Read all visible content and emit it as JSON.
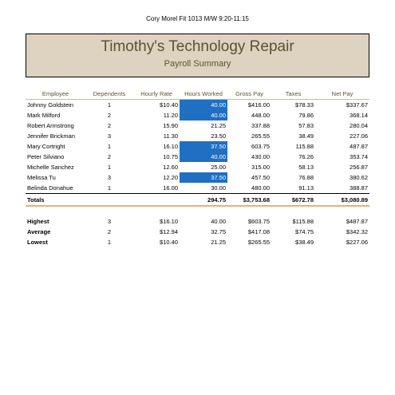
{
  "page_header": "Cory Morel Fit 1013 M/W 9:20-11:15",
  "title": "Timothy's Technology Repair",
  "subtitle": "Payroll Summary",
  "columns": [
    "Employee",
    "Dependents",
    "Hourly Rate",
    "Hours Worked",
    "Gross Pay",
    "Taxes",
    "Net Pay"
  ],
  "employees": [
    {
      "name": "Johnny Goldstein",
      "dependents": "1",
      "rate": "$10.40",
      "hours": "40.00",
      "gross": "$416.00",
      "taxes": "$78.33",
      "net": "$337.67",
      "highlight": true
    },
    {
      "name": "Mark Milford",
      "dependents": "2",
      "rate": "11.20",
      "hours": "40.00",
      "gross": "448.00",
      "taxes": "79.86",
      "net": "368.14",
      "highlight": true
    },
    {
      "name": "Robert Armstrong",
      "dependents": "2",
      "rate": "15.90",
      "hours": "21.25",
      "gross": "337.88",
      "taxes": "57.83",
      "net": "280.04",
      "highlight": false
    },
    {
      "name": "Jennifer Brickman",
      "dependents": "3",
      "rate": "11.30",
      "hours": "23.50",
      "gross": "265.55",
      "taxes": "38.49",
      "net": "227.06",
      "highlight": false
    },
    {
      "name": "Mary Cortright",
      "dependents": "1",
      "rate": "16.10",
      "hours": "37.50",
      "gross": "603.75",
      "taxes": "115.88",
      "net": "487.87",
      "highlight": true
    },
    {
      "name": "Peter Silviano",
      "dependents": "2",
      "rate": "10.75",
      "hours": "40.00",
      "gross": "430.00",
      "taxes": "76.26",
      "net": "353.74",
      "highlight": true
    },
    {
      "name": "Michelle Sanchez",
      "dependents": "1",
      "rate": "12.60",
      "hours": "25.00",
      "gross": "315.00",
      "taxes": "58.13",
      "net": "256.87",
      "highlight": false
    },
    {
      "name": "Melissa Tu",
      "dependents": "3",
      "rate": "12.20",
      "hours": "37.50",
      "gross": "457.50",
      "taxes": "76.88",
      "net": "380.62",
      "highlight": true
    },
    {
      "name": "Belinda Donahue",
      "dependents": "1",
      "rate": "16.00",
      "hours": "30.00",
      "gross": "480.00",
      "taxes": "91.13",
      "net": "388.87",
      "highlight": false
    }
  ],
  "totals": {
    "label": "Totals",
    "hours": "294.75",
    "gross": "$3,753.68",
    "taxes": "$672.78",
    "net": "$3,080.89"
  },
  "stats": [
    {
      "label": "Highest",
      "dependents": "3",
      "rate": "$16.10",
      "hours": "40.00",
      "gross": "$603.75",
      "taxes": "$115.88",
      "net": "$487.87"
    },
    {
      "label": "Average",
      "dependents": "2",
      "rate": "$12.94",
      "hours": "32.75",
      "gross": "$417.08",
      "taxes": "$74.75",
      "net": "$342.32"
    },
    {
      "label": "Lowest",
      "dependents": "1",
      "rate": "$10.40",
      "hours": "21.25",
      "gross": "$265.55",
      "taxes": "$38.49",
      "net": "$227.06"
    }
  ],
  "colors": {
    "highlight": "#1f6fc2",
    "title_bg": "#ddd3c0",
    "title_text": "#5a5232",
    "rule": "#e8b36a"
  }
}
